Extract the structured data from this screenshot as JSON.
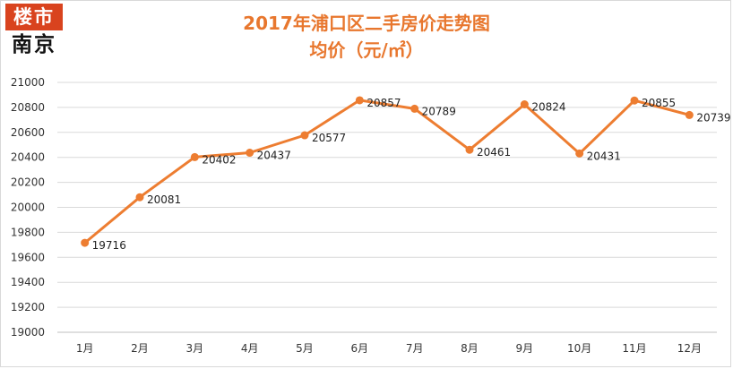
{
  "logo": {
    "top_text": "楼市",
    "bottom_text": "南京",
    "accent_color": "#d9431e"
  },
  "chart_data": {
    "type": "line",
    "title": "2017年浦口区二手房价走势图",
    "subtitle": "均价（元/㎡）",
    "categories": [
      "1月",
      "2月",
      "3月",
      "4月",
      "5月",
      "6月",
      "7月",
      "8月",
      "9月",
      "10月",
      "11月",
      "12月"
    ],
    "series": [
      {
        "values": [
          19716,
          20081,
          20402,
          20437,
          20577,
          20857,
          20789,
          20461,
          20824,
          20431,
          20855,
          20739
        ],
        "color": "#ed7d31"
      }
    ],
    "ylim": [
      19000,
      21000
    ],
    "yticks": [
      "19000",
      "19200",
      "19400",
      "19600",
      "19800",
      "20000",
      "20200",
      "20400",
      "20600",
      "20800",
      "21000"
    ],
    "data_labels": [
      "19716",
      "20081",
      "20402",
      "20437",
      "20577",
      "20857",
      "20789",
      "20461",
      "20824",
      "20431",
      "20855",
      "20739"
    ],
    "grid": true,
    "legend": "none"
  }
}
